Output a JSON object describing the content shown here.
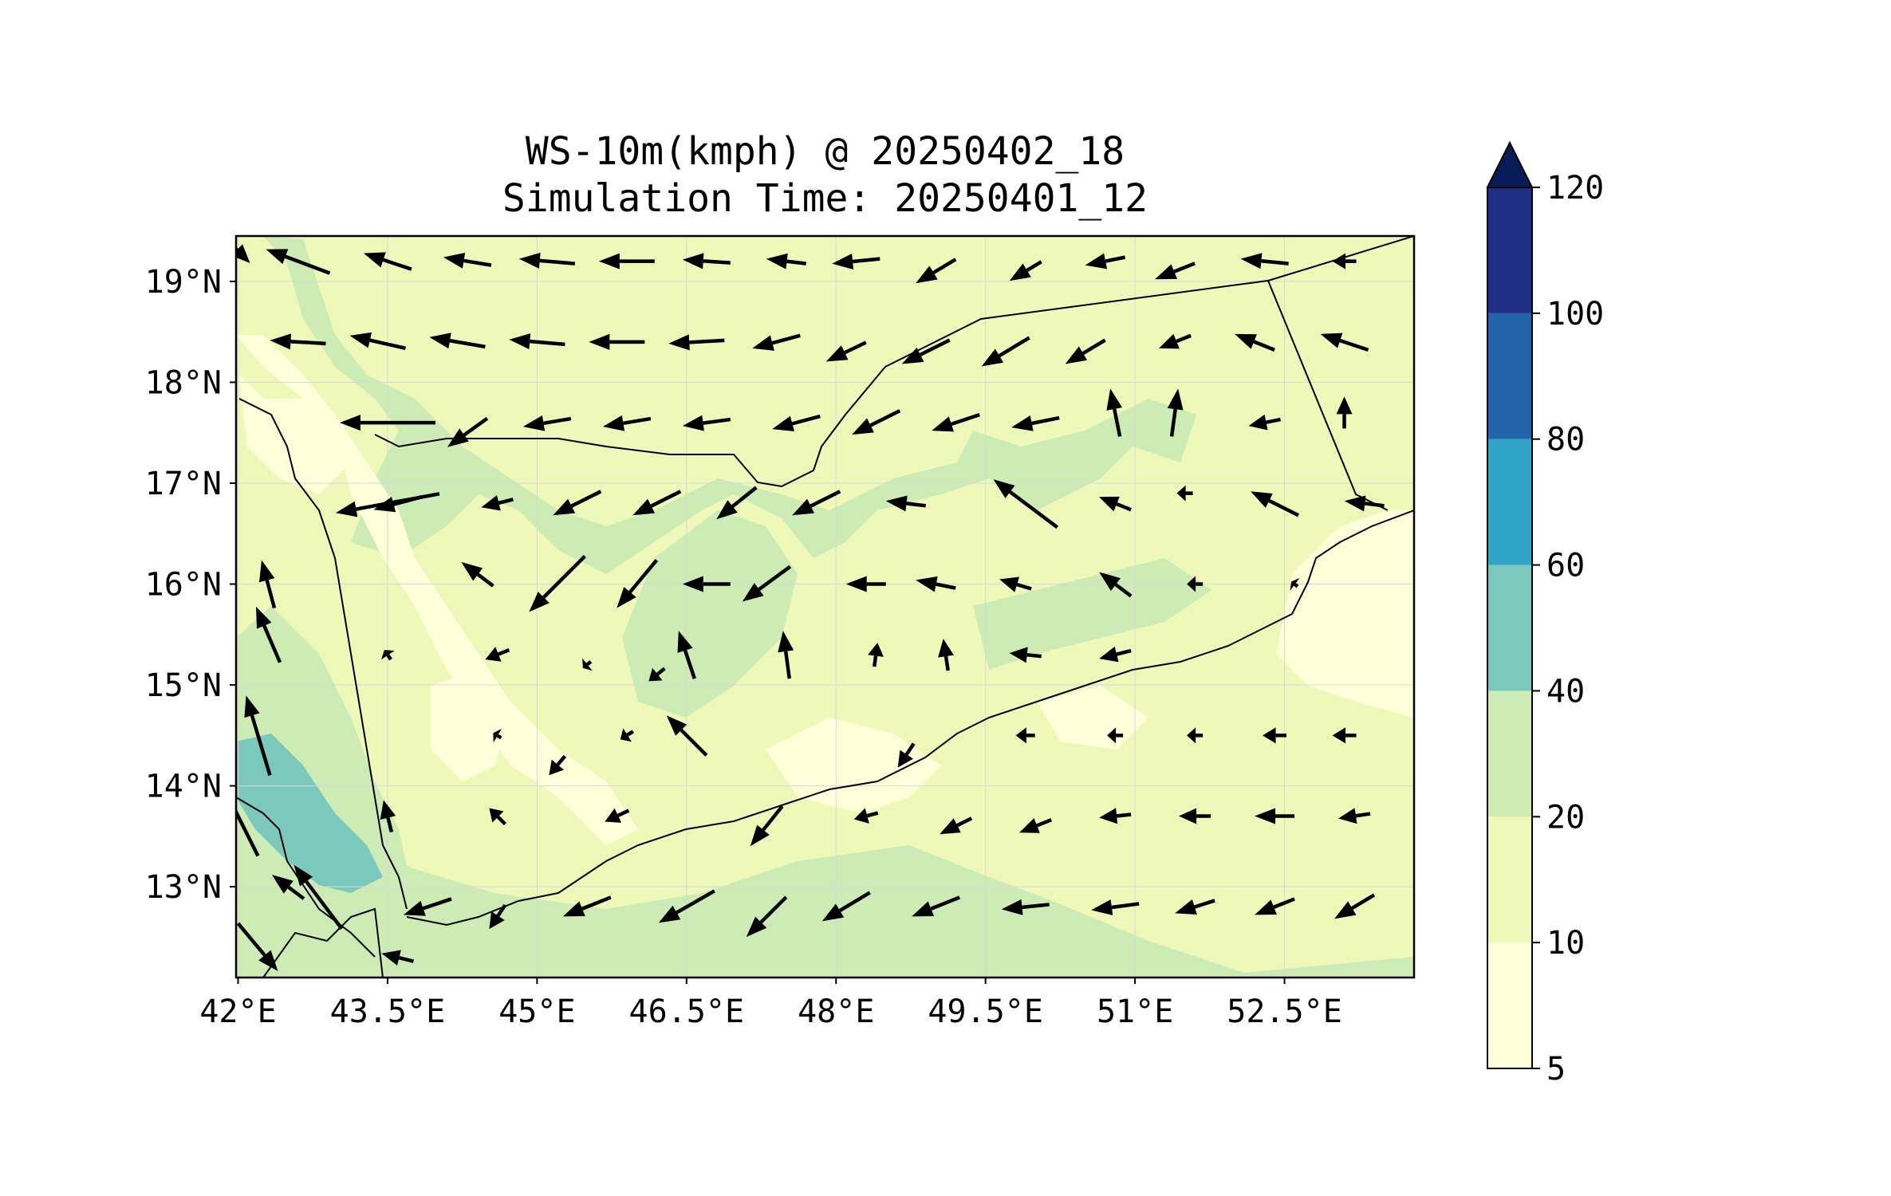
{
  "title": {
    "line1": "WS-10m(kmph) @ 20250402_18",
    "line2": "Simulation Time: 20250401_12"
  },
  "map": {
    "lon_range": [
      41.98,
      53.8
    ],
    "lat_range": [
      12.1,
      19.45
    ],
    "lon_ticks": [
      {
        "value": 42,
        "label": "42°E"
      },
      {
        "value": 43.5,
        "label": "43.5°E"
      },
      {
        "value": 45,
        "label": "45°E"
      },
      {
        "value": 46.5,
        "label": "46.5°E"
      },
      {
        "value": 48,
        "label": "48°E"
      },
      {
        "value": 49.5,
        "label": "49.5°E"
      },
      {
        "value": 51,
        "label": "51°E"
      },
      {
        "value": 52.5,
        "label": "52.5°E"
      }
    ],
    "lat_ticks": [
      {
        "value": 13,
        "label": "13°N"
      },
      {
        "value": 14,
        "label": "14°N"
      },
      {
        "value": 15,
        "label": "15°N"
      },
      {
        "value": 16,
        "label": "16°N"
      },
      {
        "value": 17,
        "label": "17°N"
      },
      {
        "value": 18,
        "label": "18°N"
      },
      {
        "value": 19,
        "label": "19°N"
      }
    ],
    "gridlines": true
  },
  "colorbar": {
    "levels": [
      5,
      10,
      20,
      40,
      60,
      80,
      100,
      120
    ],
    "labels": [
      "5",
      "10",
      "20",
      "40",
      "60",
      "80",
      "100",
      "120"
    ],
    "colors": [
      "#ffffd9",
      "#eef8b9",
      "#cdebb4",
      "#7bc9bc",
      "#2fa4c4",
      "#2263aa",
      "#1f2e83",
      "#081d58"
    ],
    "extend": "max"
  },
  "colors": {
    "land_base": "#eef8b9",
    "light": "#ffffd9",
    "mid": "#cdebb4",
    "strong": "#7bc9bc",
    "outline": "#000000"
  },
  "chart_data": {
    "type": "map",
    "variable": "WS-10m(kmph)",
    "valid_time": "20250402_18",
    "simulation_time": "20250401_12",
    "wind_vectors_u_v": [
      [
        42.0,
        19.3,
        1.5,
        -1.5
      ],
      [
        42.6,
        19.2,
        -4,
        1.5
      ],
      [
        43.5,
        19.2,
        -3,
        1
      ],
      [
        44.3,
        19.2,
        -3,
        0.5
      ],
      [
        45.1,
        19.2,
        -3.5,
        0.3
      ],
      [
        45.9,
        19.2,
        -3.5,
        0
      ],
      [
        46.7,
        19.2,
        -3,
        0.2
      ],
      [
        47.5,
        19.2,
        -2.5,
        0.3
      ],
      [
        48.2,
        19.2,
        -3,
        -0.3
      ],
      [
        49.0,
        19.1,
        -2.5,
        -1.5
      ],
      [
        49.9,
        19.1,
        -2,
        -1.2
      ],
      [
        50.7,
        19.2,
        -2.5,
        -0.5
      ],
      [
        51.4,
        19.1,
        -2.5,
        -1
      ],
      [
        52.3,
        19.2,
        -3,
        0.3
      ],
      [
        53.1,
        19.2,
        -1.5,
        0
      ],
      [
        42.6,
        18.4,
        -3.5,
        0.2
      ],
      [
        43.4,
        18.4,
        -3.5,
        0.8
      ],
      [
        44.2,
        18.4,
        -3.5,
        0.6
      ],
      [
        45.0,
        18.4,
        -3.5,
        0.3
      ],
      [
        45.8,
        18.4,
        -3.5,
        0
      ],
      [
        46.6,
        18.4,
        -3.5,
        -0.2
      ],
      [
        47.4,
        18.4,
        -3,
        -0.8
      ],
      [
        48.1,
        18.3,
        -2.5,
        -1.2
      ],
      [
        48.9,
        18.3,
        -3,
        -1.5
      ],
      [
        49.7,
        18.3,
        -3,
        -1.8
      ],
      [
        50.5,
        18.3,
        -2.5,
        -1.5
      ],
      [
        51.4,
        18.4,
        -2,
        -0.8
      ],
      [
        52.2,
        18.4,
        -2.5,
        1
      ],
      [
        53.1,
        18.4,
        -3,
        1
      ],
      [
        43.5,
        17.6,
        -6,
        0
      ],
      [
        44.3,
        17.5,
        -2.5,
        -1.8
      ],
      [
        45.1,
        17.6,
        -3,
        -0.5
      ],
      [
        45.9,
        17.6,
        -3,
        -0.5
      ],
      [
        46.7,
        17.6,
        -3,
        -0.4
      ],
      [
        47.6,
        17.6,
        -3,
        -0.8
      ],
      [
        48.4,
        17.6,
        -3,
        -1.5
      ],
      [
        49.2,
        17.6,
        -3,
        -1
      ],
      [
        50.0,
        17.6,
        -3,
        -0.6
      ],
      [
        50.8,
        17.7,
        -0.6,
        3
      ],
      [
        51.4,
        17.7,
        0.4,
        3
      ],
      [
        52.3,
        17.6,
        -2,
        -0.4
      ],
      [
        53.1,
        17.7,
        0,
        2
      ],
      [
        43.5,
        16.8,
        -6.5,
        -1.2
      ],
      [
        43.6,
        16.8,
        -3,
        -0.8
      ],
      [
        44.6,
        16.8,
        -2,
        -0.5
      ],
      [
        45.4,
        16.8,
        -3,
        -1.5
      ],
      [
        46.2,
        16.8,
        -3,
        -1.5
      ],
      [
        47.0,
        16.8,
        -2.5,
        -2
      ],
      [
        47.8,
        16.8,
        -3,
        -1.5
      ],
      [
        48.7,
        16.8,
        -2.5,
        0.3
      ],
      [
        49.9,
        16.8,
        -4,
        3
      ],
      [
        50.8,
        16.8,
        -2,
        0.8
      ],
      [
        51.5,
        16.9,
        -1,
        0
      ],
      [
        52.4,
        16.8,
        -3,
        1.5
      ],
      [
        53.3,
        16.8,
        -2.5,
        0.3
      ],
      [
        42.3,
        16.0,
        -0.8,
        3
      ],
      [
        44.4,
        16.1,
        -2,
        1.5
      ],
      [
        45.2,
        16.0,
        -3.5,
        -3.5
      ],
      [
        46.0,
        16.0,
        -2.5,
        -3
      ],
      [
        46.7,
        16.0,
        -3,
        0
      ],
      [
        47.3,
        16.0,
        -3,
        -2.2
      ],
      [
        48.3,
        16.0,
        -2.5,
        0
      ],
      [
        49.0,
        16.0,
        -2.5,
        0.5
      ],
      [
        49.8,
        16.0,
        -2,
        0.6
      ],
      [
        50.8,
        16.0,
        -2,
        1.5
      ],
      [
        51.6,
        16.0,
        -1,
        0
      ],
      [
        52.6,
        16.0,
        -0.4,
        0.3
      ],
      [
        42.3,
        15.5,
        -1.5,
        3.5
      ],
      [
        46.5,
        15.3,
        -1,
        3
      ],
      [
        47.5,
        15.3,
        -0.4,
        3
      ],
      [
        48.4,
        15.3,
        0.2,
        1.5
      ],
      [
        49.1,
        15.3,
        -0.3,
        2
      ],
      [
        49.9,
        15.3,
        -2,
        0.2
      ],
      [
        50.8,
        15.3,
        -2,
        -0.5
      ],
      [
        44.6,
        15.3,
        -1.5,
        -0.6
      ],
      [
        45.5,
        15.2,
        -0.5,
        -0.4
      ],
      [
        46.2,
        15.1,
        -1,
        -0.8
      ],
      [
        43.5,
        15.3,
        -0.4,
        0.6
      ],
      [
        42.2,
        14.5,
        -1.5,
        5
      ],
      [
        46.5,
        14.5,
        -2.5,
        2.5
      ],
      [
        44.6,
        14.5,
        -0.5,
        0.3
      ],
      [
        45.2,
        14.2,
        -1,
        -1.2
      ],
      [
        45.9,
        14.5,
        -0.8,
        -0.5
      ],
      [
        49.9,
        14.5,
        -1.2,
        0
      ],
      [
        50.8,
        14.5,
        -1,
        0
      ],
      [
        51.6,
        14.5,
        -1,
        0
      ],
      [
        52.4,
        14.5,
        -1.5,
        0
      ],
      [
        53.1,
        14.5,
        -1.5,
        0
      ],
      [
        48.7,
        14.3,
        -1,
        -1.5
      ],
      [
        42.0,
        13.7,
        -2.5,
        5
      ],
      [
        43.5,
        13.7,
        -0.5,
        2
      ],
      [
        44.6,
        13.7,
        -1,
        1
      ],
      [
        45.8,
        13.7,
        -1.5,
        -0.7
      ],
      [
        47.3,
        13.6,
        -2,
        -2.5
      ],
      [
        48.3,
        13.7,
        -1.5,
        -0.4
      ],
      [
        49.2,
        13.6,
        -2,
        -1
      ],
      [
        50.0,
        13.6,
        -2,
        -0.8
      ],
      [
        50.8,
        13.7,
        -2,
        -0.2
      ],
      [
        51.6,
        13.7,
        -2,
        0
      ],
      [
        52.4,
        13.7,
        -2.5,
        0
      ],
      [
        53.2,
        13.7,
        -2,
        -0.3
      ],
      [
        42.8,
        12.9,
        -3,
        4
      ],
      [
        42.5,
        13.0,
        -2,
        1.5
      ],
      [
        43.9,
        12.8,
        -3,
        -1
      ],
      [
        44.6,
        12.7,
        -1,
        -1.5
      ],
      [
        45.5,
        12.8,
        -3,
        -1.2
      ],
      [
        46.5,
        12.8,
        -3.5,
        -2
      ],
      [
        47.3,
        12.7,
        -2.5,
        -2.5
      ],
      [
        48.1,
        12.8,
        -3,
        -1.8
      ],
      [
        49.0,
        12.8,
        -3,
        -1.2
      ],
      [
        49.9,
        12.8,
        -3,
        -0.3
      ],
      [
        50.8,
        12.8,
        -3,
        -0.4
      ],
      [
        51.6,
        12.8,
        -2.5,
        -0.8
      ],
      [
        52.4,
        12.8,
        -2.5,
        -1
      ],
      [
        53.2,
        12.8,
        -2.5,
        -1.5
      ],
      [
        42.2,
        12.4,
        2.5,
        -3
      ],
      [
        43.6,
        12.3,
        -2,
        0.5
      ]
    ]
  }
}
